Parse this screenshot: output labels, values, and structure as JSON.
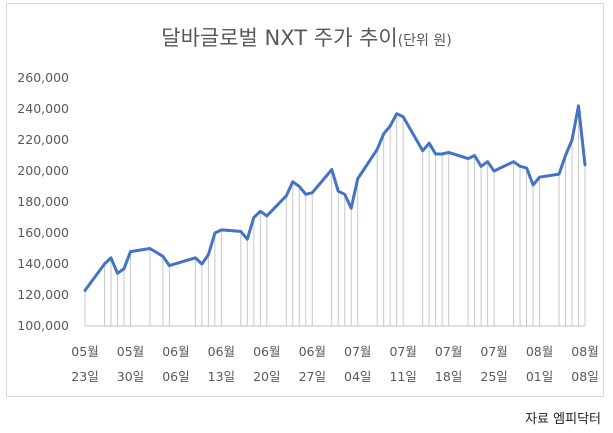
{
  "chart_data": {
    "type": "line",
    "title": "달바글로벌 NXT 주가 추이",
    "title_unit": "(단위 원)",
    "xlabel": "",
    "ylabel": "",
    "ylim": [
      100000,
      260000
    ],
    "y_ticks": [
      "100,000",
      "120,000",
      "140,000",
      "160,000",
      "180,000",
      "200,000",
      "220,000",
      "240,000",
      "260,000"
    ],
    "x_tick_labels": [
      {
        "month": "05월",
        "day": "23일"
      },
      {
        "month": "05월",
        "day": "30일"
      },
      {
        "month": "06월",
        "day": "06일"
      },
      {
        "month": "06월",
        "day": "13일"
      },
      {
        "month": "06월",
        "day": "20일"
      },
      {
        "month": "06월",
        "day": "27일"
      },
      {
        "month": "07월",
        "day": "04일"
      },
      {
        "month": "07월",
        "day": "11일"
      },
      {
        "month": "07월",
        "day": "18일"
      },
      {
        "month": "07월",
        "day": "25일"
      },
      {
        "month": "08월",
        "day": "01일"
      },
      {
        "month": "08월",
        "day": "08일"
      }
    ],
    "x": [
      "05/23",
      "05/26",
      "05/27",
      "05/28",
      "05/29",
      "05/30",
      "06/02",
      "06/04",
      "06/05",
      "06/09",
      "06/10",
      "06/11",
      "06/12",
      "06/13",
      "06/16",
      "06/17",
      "06/18",
      "06/19",
      "06/20",
      "06/23",
      "06/24",
      "06/25",
      "06/26",
      "06/27",
      "06/30",
      "07/01",
      "07/02",
      "07/03",
      "07/04",
      "07/07",
      "07/08",
      "07/09",
      "07/10",
      "07/11",
      "07/14",
      "07/15",
      "07/16",
      "07/17",
      "07/18",
      "07/21",
      "07/22",
      "07/23",
      "07/24",
      "07/25",
      "07/28",
      "07/29",
      "07/30",
      "07/31",
      "08/01",
      "08/04",
      "08/05",
      "08/06",
      "08/07",
      "08/08"
    ],
    "series": [
      {
        "values": [
          123000,
          140000,
          144000,
          134000,
          137000,
          148000,
          150000,
          145000,
          139000,
          144000,
          140000,
          146000,
          160000,
          162000,
          161000,
          156000,
          170000,
          174000,
          171000,
          184000,
          193000,
          190000,
          185000,
          186000,
          201000,
          187000,
          185000,
          176000,
          195000,
          214000,
          224000,
          229000,
          237000,
          235000,
          213000,
          218000,
          211000,
          211000,
          212000,
          208000,
          210000,
          203000,
          206000,
          200000,
          206000,
          203000,
          202000,
          191000,
          196000,
          198000,
          210000,
          220000,
          242000,
          204000
        ],
        "color": "#4472c4"
      }
    ],
    "grid": false,
    "drop_lines": true
  },
  "source_note": "자료  엠피닥터"
}
